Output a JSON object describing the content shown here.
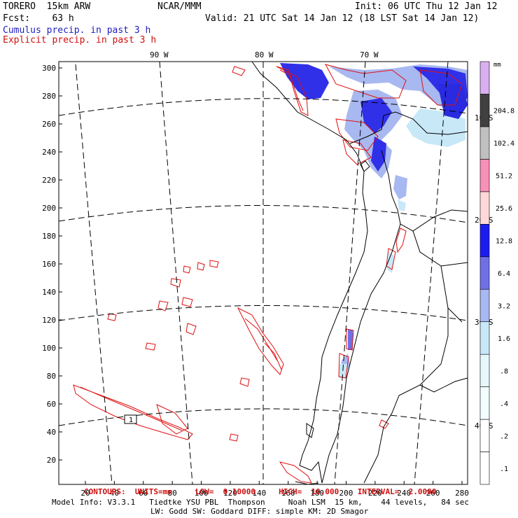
{
  "header": {
    "model": "TORERO  15km ARW",
    "center": "NCAR/MMM",
    "init": "Init: 06 UTC Thu 12 Jan 12",
    "fcst": "Fcst:    63 h",
    "valid": "Valid: 21 UTC Sat 14 Jan 12 (18 LST Sat 14 Jan 12)",
    "cumulus_title": "Cumulus precip. in past 3 h",
    "explicit_title": "Explicit precip. in past 3 h"
  },
  "colors": {
    "cumulus": "#1f1fd0",
    "explicit": "#e01010",
    "grid": "#000000"
  },
  "map": {
    "lon_labels": [
      "90 W",
      "80 W",
      "70 W"
    ],
    "lat_labels": [
      "10 S",
      "20 S",
      "30 S",
      "40 S"
    ],
    "y_ticks": [
      "20",
      "40",
      "60",
      "80",
      "100",
      "120",
      "140",
      "160",
      "180",
      "200",
      "220",
      "240",
      "260",
      "280",
      "300"
    ],
    "x_ticks": [
      "20",
      "40",
      "60",
      "80",
      "100",
      "120",
      "140",
      "160",
      "180",
      "200",
      "220",
      "240",
      "260",
      "280"
    ],
    "station_marker": "1"
  },
  "legend": {
    "unit": "mm",
    "levels": [
      {
        "label": ".1",
        "color": "#ffffff"
      },
      {
        "label": ".2",
        "color": "#ffffff"
      },
      {
        "label": ".4",
        "color": "#f2fdfe"
      },
      {
        "label": ".8",
        "color": "#e6f8fc"
      },
      {
        "label": "1.6",
        "color": "#c8e8f8"
      },
      {
        "label": "3.2",
        "color": "#a8b8f0"
      },
      {
        "label": "6.4",
        "color": "#6f6fe6"
      },
      {
        "label": "12.8",
        "color": "#1c1cf0"
      },
      {
        "label": "25.6",
        "color": "#ffd8d8"
      },
      {
        "label": "51.2",
        "color": "#f890b8"
      },
      {
        "label": "102.4",
        "color": "#c0c0c0"
      },
      {
        "label": "204.8",
        "color": "#404040"
      },
      {
        "label": "",
        "color": "#d8b0f0"
      }
    ]
  },
  "footer": {
    "contours": "CONTOURS:  UNITS=mm     LOW=  0.10000     HIGH=  10.000    INTERVAL=  2.0000",
    "model_info": "Model Info: V3.3.1   Tiedtke YSU PBL  Thompson     Noah LSM  15 km,    44 levels,   84 sec",
    "model_info2": "LW: Godd SW: Goddard DIFF: simple KM: 2D Smagor"
  }
}
